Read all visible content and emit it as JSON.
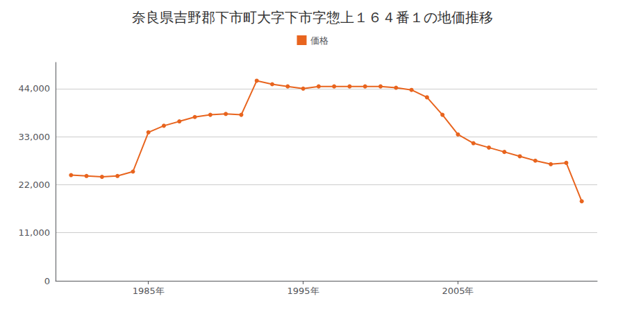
{
  "chart_data": {
    "type": "line",
    "title": "奈良県吉野郡下市町大字下市字惣上１６４番１の地価推移",
    "x": [
      1980,
      1981,
      1982,
      1983,
      1984,
      1985,
      1986,
      1987,
      1988,
      1989,
      1990,
      1991,
      1992,
      1993,
      1994,
      1995,
      1996,
      1997,
      1998,
      1999,
      2000,
      2001,
      2002,
      2003,
      2004,
      2005,
      2006,
      2007,
      2008,
      2009,
      2010,
      2011,
      2012,
      2013
    ],
    "series": [
      {
        "name": "価格",
        "color": "#E8641E",
        "marker": "circle",
        "values": [
          24200,
          24000,
          23800,
          24000,
          25000,
          34000,
          35500,
          36500,
          37500,
          38000,
          38200,
          38000,
          45800,
          45000,
          44500,
          44000,
          44500,
          44500,
          44500,
          44500,
          44500,
          44200,
          43700,
          42000,
          38000,
          33500,
          31500,
          30500,
          29500,
          28500,
          27500,
          26700,
          27000,
          18200
        ]
      }
    ],
    "xlim": [
      1979,
      2014
    ],
    "xticks": [
      {
        "value": 1985,
        "label": "1985年"
      },
      {
        "value": 1995,
        "label": "1995年"
      },
      {
        "value": 2005,
        "label": "2005年"
      }
    ],
    "ylim": [
      0,
      50000
    ],
    "yticks": [
      0,
      {
        "value": 11000,
        "label": "11,000"
      },
      {
        "value": 22000,
        "label": "22,000"
      },
      {
        "value": 33000,
        "label": "33,000"
      },
      {
        "value": 44000,
        "label": "44,000"
      }
    ],
    "grid": true,
    "legend": "top"
  }
}
